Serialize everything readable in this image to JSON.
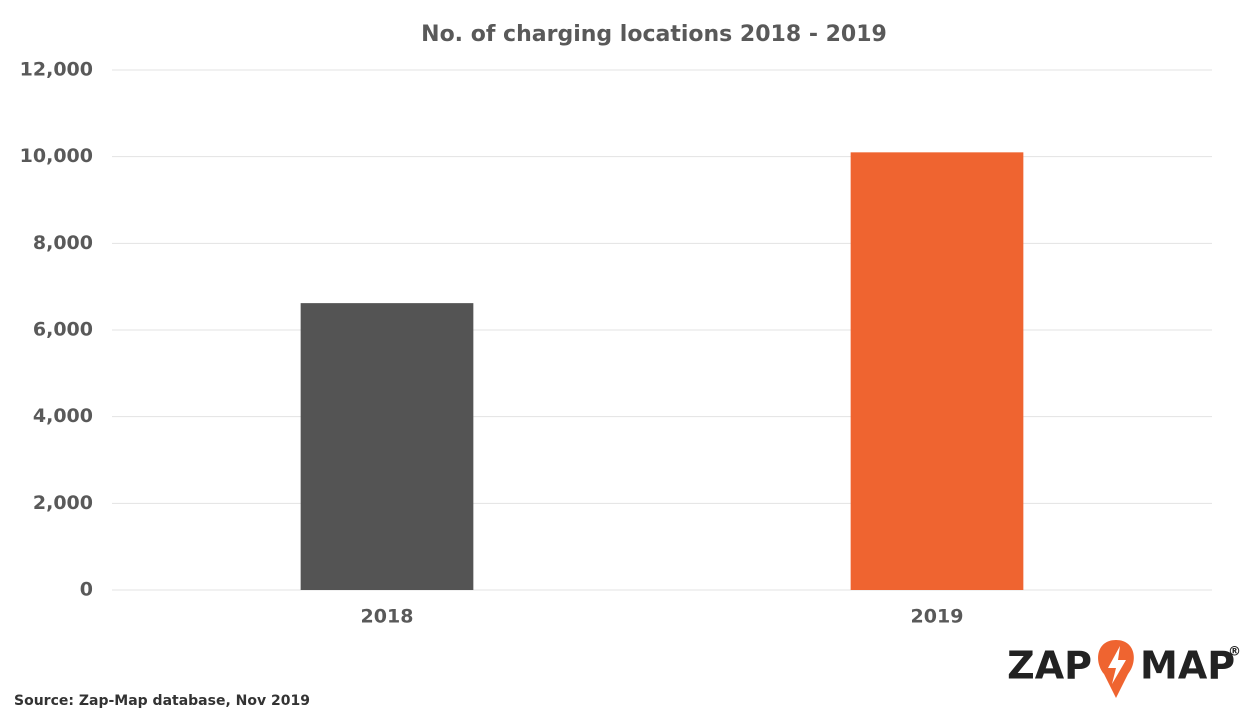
{
  "chart_data": {
    "type": "bar",
    "title": "No. of charging locations 2018 - 2019",
    "categories": [
      "2018",
      "2019"
    ],
    "values": [
      6620,
      10100
    ],
    "colors": [
      "#545454",
      "#ef6430"
    ],
    "ylim": [
      0,
      12000
    ],
    "yticks": [
      0,
      {
        "value": 2000,
        "label": "2,000"
      },
      {
        "value": 4000,
        "label": "4,000"
      },
      {
        "value": 6000,
        "label": "6,000"
      },
      {
        "value": 8000,
        "label": "8,000"
      },
      {
        "value": 10000,
        "label": "10,000"
      },
      {
        "value": 12000,
        "label": "12,000"
      }
    ],
    "grid": true,
    "source": "Source: Zap-Map database, Nov 2019",
    "logo": {
      "left": "ZAP",
      "right": "MAP",
      "mark": "®"
    }
  }
}
